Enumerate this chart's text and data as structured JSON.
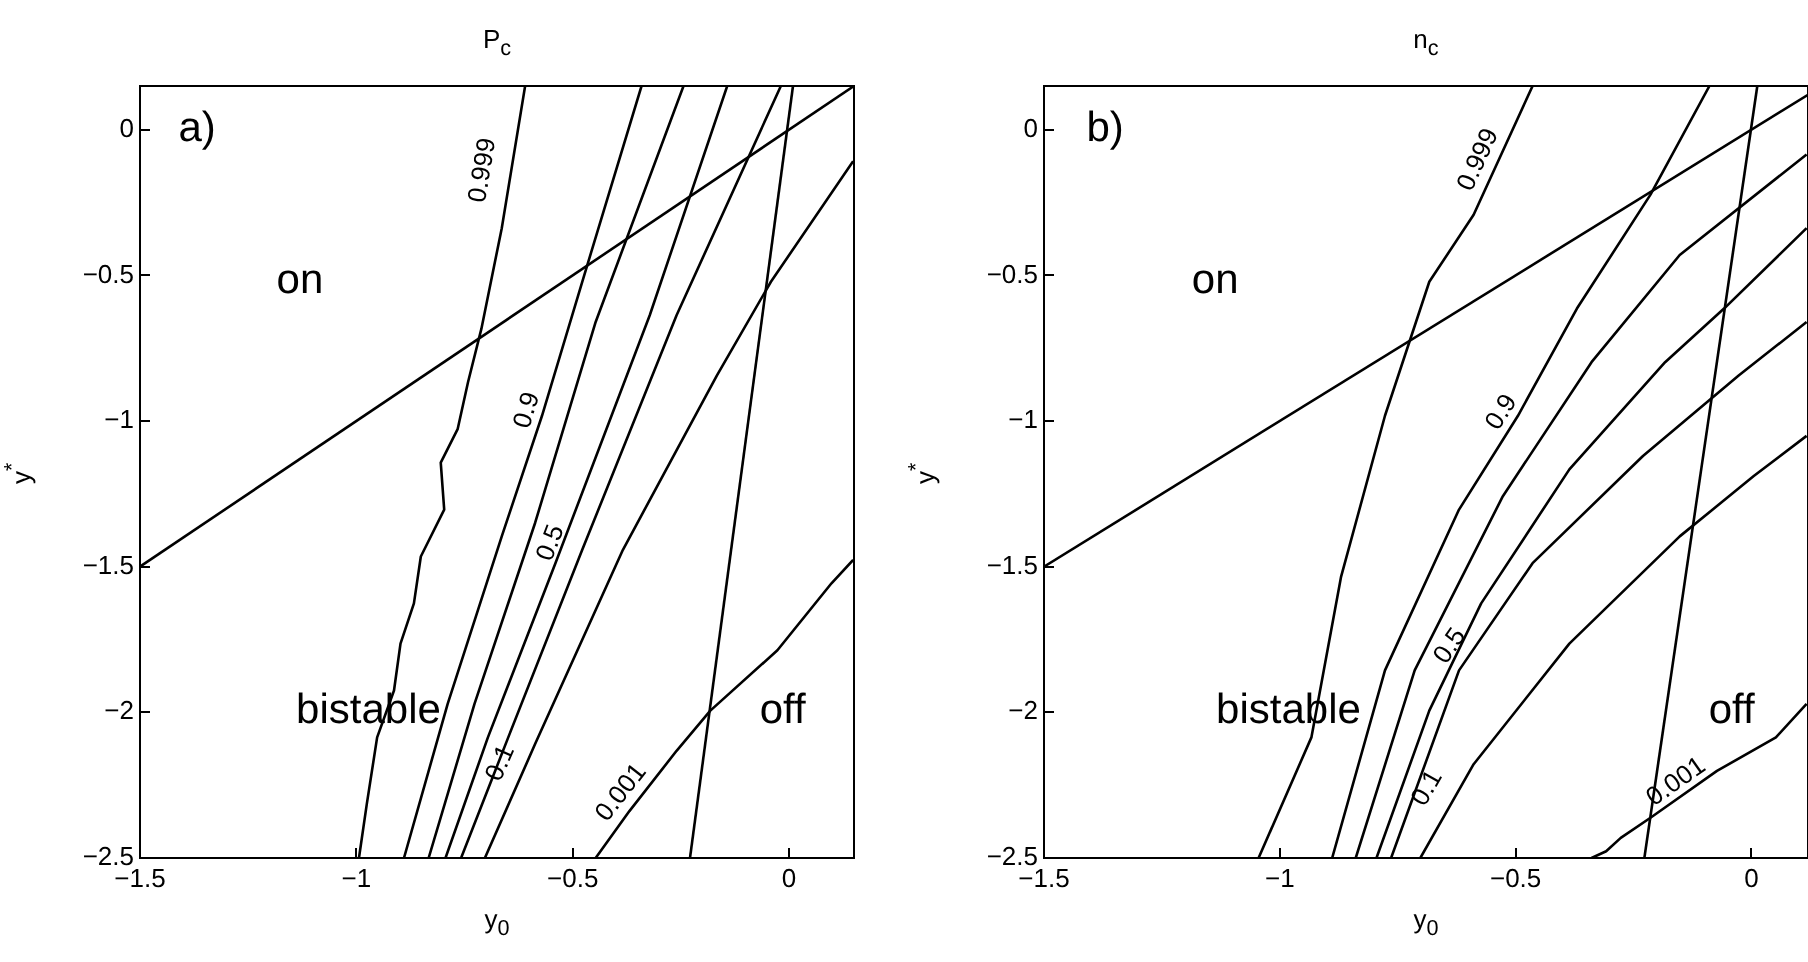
{
  "chart_data": [
    {
      "type": "line",
      "title": "P$_{c}$",
      "xlabel": "y$_{0}$",
      "ylabel": "y$^{*}$",
      "xlim": [
        -1.5,
        0.15
      ],
      "ylim": [
        -2.5,
        0.15
      ],
      "xticks": [
        {
          "value": -1.5,
          "label": "−1.5"
        },
        {
          "value": -1,
          "label": "−1"
        },
        {
          "value": -0.5,
          "label": "−0.5"
        },
        0
      ],
      "yticks": [
        {
          "value": -2.5,
          "label": "−2.5"
        },
        {
          "value": -2,
          "label": "−2"
        },
        {
          "value": -1.5,
          "label": "−1.5"
        },
        {
          "value": -1,
          "label": "−1"
        },
        {
          "value": -0.5,
          "label": "−0.5"
        },
        0
      ],
      "grid": false,
      "legend": false,
      "marker": "none",
      "line_style": "solid",
      "series": [
        {
          "color": "#000000",
          "x": [
            -1.5,
            0.15
          ],
          "values": [
            -1.5,
            0.15
          ]
        },
        {
          "color": "#000000",
          "x": [
            -0.229,
            0.009
          ],
          "values": [
            -2.5,
            0.15
          ]
        },
        {
          "color": "#000000",
          "x": [
            -0.994,
            -0.976,
            -0.952,
            -0.913,
            -0.898,
            -0.867,
            -0.851,
            -0.797,
            -0.805,
            -0.766,
            -0.742,
            -0.711,
            -0.664,
            -0.61
          ],
          "values": [
            -2.5,
            -2.316,
            -2.086,
            -1.925,
            -1.764,
            -1.626,
            -1.465,
            -1.304,
            -1.143,
            -1.028,
            -0.867,
            -0.683,
            -0.338,
            0.15
          ]
        },
        {
          "color": "#000000",
          "x": [
            -0.89,
            -0.789,
            -0.664,
            -0.571,
            -0.478,
            -0.341
          ],
          "values": [
            -2.5,
            -1.971,
            -1.396,
            -0.982,
            -0.522,
            0.15
          ]
        },
        {
          "color": "#000000",
          "x": [
            -0.833,
            -0.727,
            -0.587,
            -0.447,
            -0.244
          ],
          "values": [
            -2.5,
            -1.971,
            -1.35,
            -0.66,
            0.15
          ]
        },
        {
          "color": "#000000",
          "x": [
            -0.794,
            -0.696,
            -0.54,
            -0.322,
            -0.143
          ],
          "values": [
            -2.5,
            -2.086,
            -1.488,
            -0.637,
            0.15
          ]
        },
        {
          "color": "#000000",
          "x": [
            -0.758,
            -0.649,
            -0.478,
            -0.26,
            -0.019
          ],
          "values": [
            -2.5,
            -2.086,
            -1.442,
            -0.637,
            0.15
          ]
        },
        {
          "color": "#000000",
          "x": [
            -0.703,
            -0.587,
            -0.384,
            -0.167,
            -0.042,
            0.148
          ],
          "values": [
            -2.5,
            -2.109,
            -1.442,
            -0.844,
            -0.522,
            -0.108
          ]
        },
        {
          "color": "#000000",
          "x": [
            -0.447,
            -0.369,
            -0.26,
            -0.182,
            -0.027,
            0.098,
            0.148
          ],
          "values": [
            -2.5,
            -2.339,
            -2.132,
            -1.994,
            -1.787,
            -1.557,
            -1.477
          ]
        }
      ],
      "annotations": [
        "a)",
        "on",
        "bistable",
        "off",
        {
          "text": "0.999",
          "x": -0.664,
          "y": -0.15
        },
        {
          "text": "0.9",
          "x": -0.563,
          "y": -0.982
        },
        {
          "text": "0.5",
          "x": -0.509,
          "y": -1.442
        },
        {
          "text": "0.1",
          "x": -0.626,
          "y": -2.201
        },
        {
          "text": "0.001",
          "x": -0.353,
          "y": -2.316
        }
      ]
    },
    {
      "type": "line",
      "title": "n$_{c}$",
      "xlabel": "y$_{0}$",
      "ylabel": "y$^{*}$",
      "xlim": [
        -1.5,
        0.12
      ],
      "ylim": [
        -2.5,
        0.15
      ],
      "xticks": [
        {
          "value": -1.5,
          "label": "−1.5"
        },
        {
          "value": -1,
          "label": "−1"
        },
        {
          "value": -0.5,
          "label": "−0.5"
        },
        0
      ],
      "yticks": [
        {
          "value": -2.5,
          "label": "−2.5"
        },
        {
          "value": -2,
          "label": "−2"
        },
        {
          "value": -1.5,
          "label": "−1.5"
        },
        {
          "value": -1,
          "label": "−1"
        },
        {
          "value": -0.5,
          "label": "−0.5"
        },
        0
      ],
      "grid": false,
      "legend": false,
      "marker": "none",
      "line_style": "solid",
      "series": [
        {
          "color": "#000000",
          "x": [
            -1.5,
            0.12
          ],
          "values": [
            -1.5,
            0.12
          ]
        },
        {
          "color": "#000000",
          "x": [
            -0.227,
            0.0125
          ],
          "values": [
            -2.5,
            0.15
          ]
        },
        {
          "color": "#000000",
          "x": [
            -1.045,
            -0.933,
            -0.87,
            -0.777,
            -0.683,
            -0.589,
            -0.464
          ],
          "values": [
            -2.5,
            -2.086,
            -1.534,
            -0.982,
            -0.522,
            -0.292,
            0.15
          ]
        },
        {
          "color": "#000000",
          "x": [
            -0.889,
            -0.777,
            -0.62,
            -0.495,
            -0.37,
            -0.214,
            -0.089
          ],
          "values": [
            -2.5,
            -1.856,
            -1.304,
            -0.982,
            -0.614,
            -0.223,
            0.15
          ]
        },
        {
          "color": "#000000",
          "x": [
            -0.839,
            -0.714,
            -0.527,
            -0.339,
            -0.152,
            0.117
          ],
          "values": [
            -2.5,
            -1.856,
            -1.258,
            -0.798,
            -0.43,
            -0.085
          ]
        },
        {
          "color": "#000000",
          "x": [
            -0.795,
            -0.683,
            -0.573,
            -0.386,
            -0.183,
            -0.058,
            0.117
          ],
          "values": [
            -2.5,
            -1.994,
            -1.626,
            -1.166,
            -0.798,
            -0.614,
            -0.338
          ]
        },
        {
          "color": "#000000",
          "x": [
            -0.764,
            -0.62,
            -0.464,
            -0.23,
            -0.027,
            0.117
          ],
          "values": [
            -2.5,
            -1.856,
            -1.488,
            -1.12,
            -0.844,
            -0.66
          ]
        },
        {
          "color": "#000000",
          "x": [
            -0.702,
            -0.589,
            -0.386,
            -0.152,
            0.005,
            0.117
          ],
          "values": [
            -2.5,
            -2.178,
            -1.764,
            -1.396,
            -1.189,
            -1.051
          ]
        },
        {
          "color": "#000000",
          "x": [
            -0.339,
            -0.308,
            -0.277,
            -0.214,
            -0.073,
            0.052,
            0.117
          ],
          "values": [
            -2.5,
            -2.477,
            -2.431,
            -2.362,
            -2.201,
            -2.086,
            -1.971
          ]
        }
      ],
      "annotations": [
        "b)",
        "on",
        "bistable",
        "off",
        {
          "text": "0.999",
          "x": -0.542,
          "y": -0.131
        },
        {
          "text": "0.9",
          "x": -0.495,
          "y": -1.005
        },
        {
          "text": "0.5",
          "x": -0.605,
          "y": -1.81
        },
        {
          "text": "0.1",
          "x": -0.652,
          "y": -2.293
        },
        {
          "text": "0.001",
          "x": -0.136,
          "y": -2.293
        }
      ]
    }
  ]
}
